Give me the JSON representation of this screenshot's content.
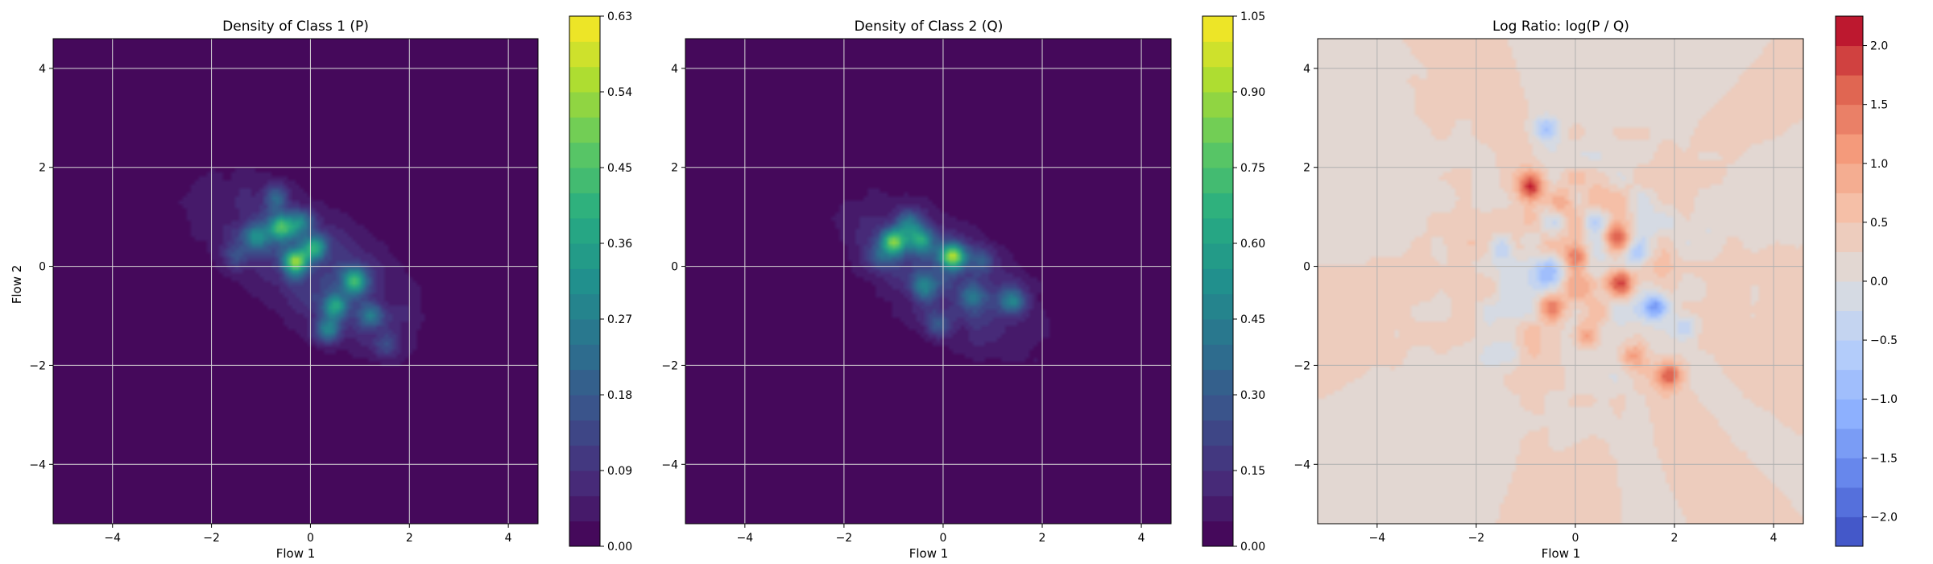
{
  "chart_data": [
    {
      "type": "heatmap",
      "title": "Density of Class 1 (P)",
      "xlabel": "Flow 1",
      "ylabel": "Flow 2",
      "xlim": [
        -5.2,
        4.6
      ],
      "ylim": [
        -5.2,
        4.6
      ],
      "xticks": [
        -4,
        -2,
        0,
        2,
        4
      ],
      "yticks": [
        -4,
        -2,
        0,
        2,
        4
      ],
      "grid": true,
      "colormap": "viridis",
      "colorbar": {
        "min": 0.0,
        "max": 0.63,
        "ticks": [
          0.0,
          0.09,
          0.18,
          0.27,
          0.36,
          0.45,
          0.54,
          0.63
        ],
        "tick_labels": [
          "0.00",
          "0.09",
          "0.18",
          "0.27",
          "0.36",
          "0.45",
          "0.54",
          "0.63"
        ],
        "levels": 21
      },
      "field": {
        "background": 0.0,
        "envelope": {
          "center": [
            0.0,
            0.0
          ],
          "major_axis_sigma": 1.7,
          "minor_axis_sigma": 0.75,
          "angle_deg": -35
        },
        "peaks": [
          {
            "x": -0.6,
            "y": 0.8,
            "value": 0.36
          },
          {
            "x": -0.3,
            "y": 0.1,
            "value": 0.42
          },
          {
            "x": 0.1,
            "y": 0.4,
            "value": 0.3
          },
          {
            "x": 0.9,
            "y": -0.3,
            "value": 0.4
          },
          {
            "x": -1.1,
            "y": 0.6,
            "value": 0.25
          },
          {
            "x": 0.5,
            "y": -0.8,
            "value": 0.33
          },
          {
            "x": 0.35,
            "y": -1.3,
            "value": 0.3
          },
          {
            "x": 1.2,
            "y": -1.0,
            "value": 0.22
          },
          {
            "x": -0.7,
            "y": 1.4,
            "value": 0.2
          },
          {
            "x": -0.2,
            "y": 0.9,
            "value": 0.24
          },
          {
            "x": 1.5,
            "y": -1.6,
            "value": 0.15
          },
          {
            "x": -1.5,
            "y": 0.2,
            "value": 0.14
          }
        ]
      }
    },
    {
      "type": "heatmap",
      "title": "Density of Class 2 (Q)",
      "xlabel": "Flow 1",
      "ylabel": "",
      "xlim": [
        -5.2,
        4.6
      ],
      "ylim": [
        -5.2,
        4.6
      ],
      "xticks": [
        -4,
        -2,
        0,
        2,
        4
      ],
      "yticks": [
        -4,
        -2,
        0,
        2,
        4
      ],
      "grid": true,
      "colormap": "viridis",
      "colorbar": {
        "min": 0.0,
        "max": 1.05,
        "ticks": [
          0.0,
          0.15,
          0.3,
          0.45,
          0.6,
          0.75,
          0.9,
          1.05
        ],
        "tick_labels": [
          "0.00",
          "0.15",
          "0.30",
          "0.45",
          "0.60",
          "0.75",
          "0.90",
          "1.05"
        ],
        "levels": 21
      },
      "field": {
        "background": 0.0,
        "envelope": {
          "center": [
            0.0,
            -0.2
          ],
          "major_axis_sigma": 1.55,
          "minor_axis_sigma": 0.7,
          "angle_deg": -35
        },
        "peaks": [
          {
            "x": -1.0,
            "y": 0.5,
            "value": 0.75
          },
          {
            "x": 0.2,
            "y": 0.2,
            "value": 0.8
          },
          {
            "x": -0.45,
            "y": 0.55,
            "value": 0.5
          },
          {
            "x": -0.7,
            "y": 0.9,
            "value": 0.4
          },
          {
            "x": 1.4,
            "y": -0.7,
            "value": 0.45
          },
          {
            "x": -0.4,
            "y": -0.4,
            "value": 0.35
          },
          {
            "x": 0.6,
            "y": -0.6,
            "value": 0.3
          },
          {
            "x": -0.1,
            "y": -1.2,
            "value": 0.3
          },
          {
            "x": 0.8,
            "y": 0.1,
            "value": 0.25
          },
          {
            "x": -1.3,
            "y": 0.2,
            "value": 0.22
          }
        ]
      }
    },
    {
      "type": "heatmap",
      "title": "Log Ratio: log(P / Q)",
      "xlabel": "Flow 1",
      "ylabel": "",
      "xlim": [
        -5.2,
        4.6
      ],
      "ylim": [
        -5.2,
        4.6
      ],
      "xticks": [
        -4,
        -2,
        0,
        2,
        4
      ],
      "yticks": [
        -4,
        -2,
        0,
        2,
        4
      ],
      "grid": true,
      "colormap": "coolwarm",
      "colorbar": {
        "min": -2.25,
        "max": 2.25,
        "ticks": [
          -2.0,
          -1.5,
          -1.0,
          -0.5,
          0.0,
          0.5,
          1.0,
          1.5,
          2.0
        ],
        "tick_labels": [
          "−2.0",
          "−1.5",
          "−1.0",
          "−0.5",
          "0.0",
          "0.5",
          "1.0",
          "1.5",
          "2.0"
        ],
        "levels": 18
      },
      "field": {
        "background": 0.2,
        "peaks": [
          {
            "x": -0.9,
            "y": 1.6,
            "value": 1.6
          },
          {
            "x": 0.9,
            "y": -0.3,
            "value": 1.3
          },
          {
            "x": 1.9,
            "y": -2.2,
            "value": 1.4
          },
          {
            "x": -0.5,
            "y": -0.8,
            "value": 1.0
          },
          {
            "x": 0.0,
            "y": 0.2,
            "value": 0.9
          },
          {
            "x": -0.3,
            "y": 1.3,
            "value": 0.8
          },
          {
            "x": 0.8,
            "y": 0.6,
            "value": 1.0
          },
          {
            "x": 0.2,
            "y": -1.4,
            "value": 1.0
          },
          {
            "x": 1.2,
            "y": -1.8,
            "value": 0.8
          },
          {
            "x": -0.6,
            "y": 2.8,
            "value": -0.9
          },
          {
            "x": -1.5,
            "y": 0.4,
            "value": -1.0
          },
          {
            "x": -0.9,
            "y": 0.5,
            "value": -0.8
          },
          {
            "x": 0.4,
            "y": 0.9,
            "value": -0.8
          },
          {
            "x": 1.6,
            "y": -0.8,
            "value": -1.3
          },
          {
            "x": 1.2,
            "y": 0.2,
            "value": -0.8
          },
          {
            "x": -0.6,
            "y": -0.2,
            "value": -0.7
          },
          {
            "x": 2.2,
            "y": -1.2,
            "value": -0.6
          },
          {
            "x": 0.5,
            "y": -0.5,
            "value": -0.6
          }
        ]
      }
    }
  ]
}
